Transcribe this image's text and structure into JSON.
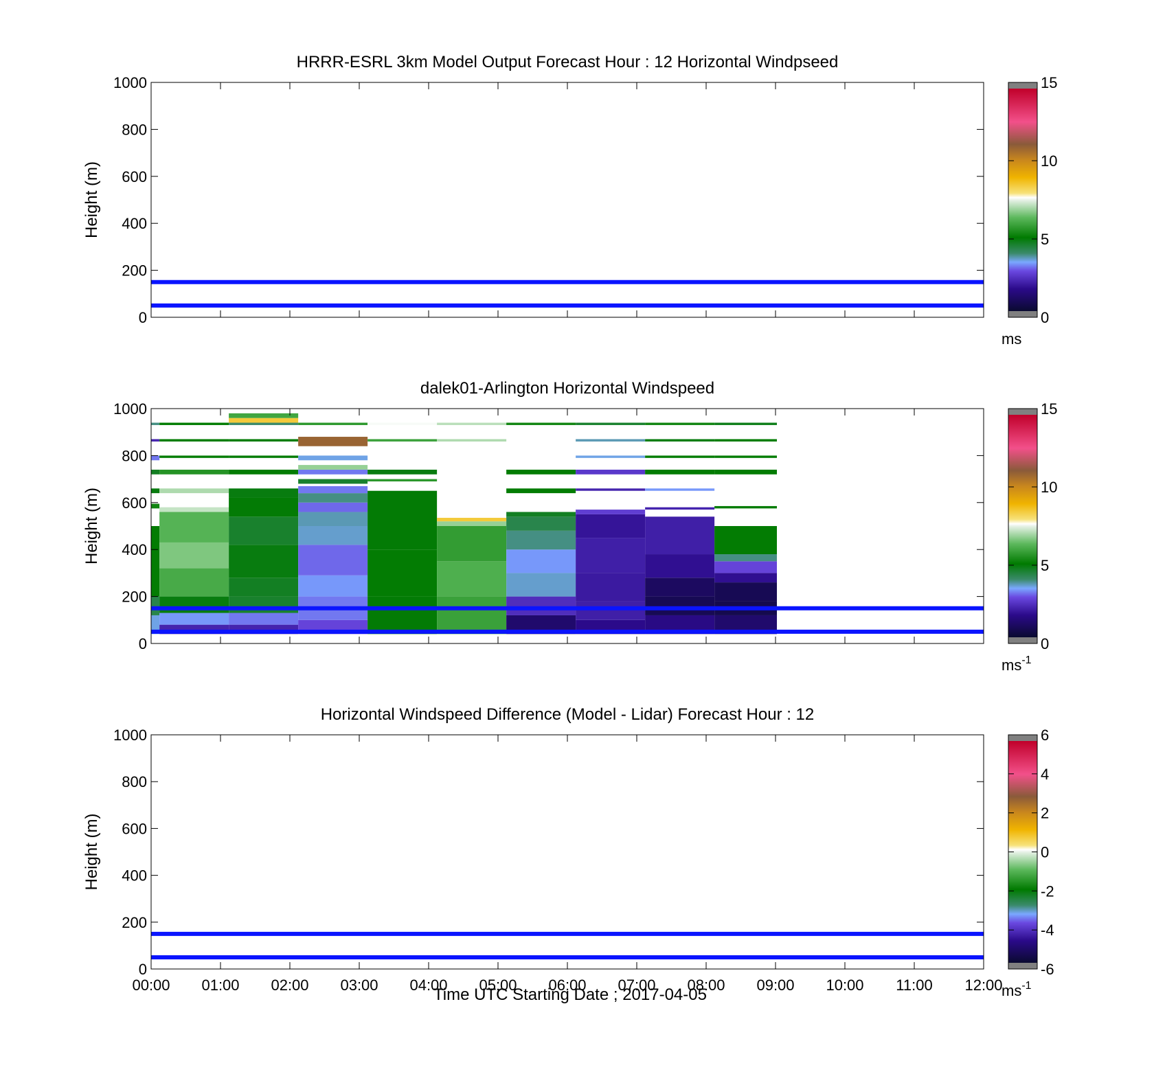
{
  "colors": {
    "guide_line": "#0a14ff",
    "axis": "#000000",
    "background": "#ffffff"
  },
  "xaxis": {
    "label": "Time UTC  Starting Date ; 2017-04-05",
    "ticks": [
      "00:00",
      "01:00",
      "02:00",
      "03:00",
      "04:00",
      "05:00",
      "06:00",
      "07:00",
      "08:00",
      "09:00",
      "10:00",
      "11:00",
      "12:00"
    ],
    "range_hours": [
      0,
      12
    ]
  },
  "chart_data": [
    {
      "type": "heatmap",
      "title": "HRRR-ESRL 3km Model Output   Forecast Hour : 12 Horizontal Windpseed",
      "ylabel": "Height (m)",
      "ylim": [
        0,
        1000
      ],
      "yticks": [
        "0",
        "200",
        "400",
        "600",
        "800",
        "1000"
      ],
      "colorbar": {
        "min": 0,
        "max": 15,
        "ticks": [
          "0",
          "5",
          "10",
          "15"
        ],
        "unit": "ms",
        "unit_sup": "",
        "palette": "speed"
      },
      "guide_lines_m": [
        50,
        150
      ],
      "columns": []
    },
    {
      "type": "heatmap",
      "title": "dalek01-Arlington  Horizontal Windspeed",
      "ylabel": "Height (m)",
      "ylim": [
        0,
        1000
      ],
      "yticks": [
        "0",
        "200",
        "400",
        "600",
        "800",
        "1000"
      ],
      "colorbar": {
        "min": 0,
        "max": 15,
        "ticks": [
          "0",
          "5",
          "10",
          "15"
        ],
        "unit": "ms",
        "unit_sup": "-1",
        "palette": "speed"
      },
      "guide_lines_m": [
        50,
        150
      ],
      "columns": [
        {
          "t0": 0.0,
          "t1": 0.12,
          "layers": [
            [
              40,
              120,
              3.4
            ],
            [
              120,
              200,
              4.2
            ],
            [
              200,
              500,
              5.0
            ],
            [
              575,
              595,
              5.2
            ],
            [
              640,
              660,
              4.8
            ],
            [
              720,
              740,
              4.6
            ],
            [
              780,
              800,
              3.0
            ],
            [
              860,
              870,
              2.0
            ],
            [
              930,
              940,
              3.8
            ]
          ]
        },
        {
          "t0": 0.12,
          "t1": 1.12,
          "layers": [
            [
              40,
              80,
              2.0
            ],
            [
              80,
              130,
              3.2
            ],
            [
              130,
              200,
              4.8
            ],
            [
              200,
              320,
              6.0
            ],
            [
              320,
              430,
              6.6
            ],
            [
              430,
              560,
              6.2
            ],
            [
              560,
              580,
              7.2
            ],
            [
              640,
              660,
              7.0
            ],
            [
              720,
              740,
              5.5
            ],
            [
              790,
              800,
              5.0
            ],
            [
              860,
              870,
              5.0
            ],
            [
              930,
              940,
              5.0
            ]
          ]
        },
        {
          "t0": 1.12,
          "t1": 2.12,
          "layers": [
            [
              40,
              80,
              2.0
            ],
            [
              80,
              130,
              3.0
            ],
            [
              130,
              200,
              4.5
            ],
            [
              200,
              280,
              4.6
            ],
            [
              280,
              420,
              4.8
            ],
            [
              420,
              540,
              4.5
            ],
            [
              540,
              620,
              4.9
            ],
            [
              620,
              660,
              4.8
            ],
            [
              720,
              740,
              5.0
            ],
            [
              790,
              800,
              4.9
            ],
            [
              860,
              870,
              4.9
            ],
            [
              930,
              940,
              3.9
            ],
            [
              940,
              960,
              8.5
            ],
            [
              960,
              980,
              5.9
            ]
          ]
        },
        {
          "t0": 2.12,
          "t1": 3.12,
          "layers": [
            [
              40,
              100,
              2.6
            ],
            [
              100,
              200,
              3.0
            ],
            [
              200,
              290,
              3.2
            ],
            [
              290,
              420,
              2.9
            ],
            [
              420,
              500,
              3.5
            ],
            [
              500,
              560,
              3.6
            ],
            [
              560,
              600,
              2.9
            ],
            [
              600,
              640,
              3.8
            ],
            [
              640,
              670,
              3.0
            ],
            [
              680,
              700,
              4.5
            ],
            [
              720,
              740,
              3.0
            ],
            [
              740,
              760,
              6.8
            ],
            [
              780,
              800,
              3.4
            ],
            [
              840,
              880,
              11.0
            ],
            [
              930,
              940,
              5.6
            ]
          ]
        },
        {
          "t0": 3.12,
          "t1": 4.12,
          "layers": [
            [
              40,
              200,
              4.9
            ],
            [
              200,
              400,
              5.0
            ],
            [
              400,
              650,
              4.9
            ],
            [
              690,
              700,
              5.6
            ],
            [
              720,
              740,
              4.8
            ],
            [
              860,
              870,
              5.8
            ],
            [
              930,
              940,
              7.6
            ]
          ]
        },
        {
          "t0": 4.12,
          "t1": 5.12,
          "layers": [
            [
              40,
              200,
              5.8
            ],
            [
              200,
              350,
              6.1
            ],
            [
              350,
              500,
              5.7
            ],
            [
              500,
              520,
              6.8
            ],
            [
              520,
              535,
              8.5
            ],
            [
              860,
              870,
              7.0
            ],
            [
              930,
              940,
              7.1
            ]
          ]
        },
        {
          "t0": 5.12,
          "t1": 6.12,
          "layers": [
            [
              40,
              120,
              1.0
            ],
            [
              120,
              200,
              2.2
            ],
            [
              200,
              300,
              3.5
            ],
            [
              300,
              400,
              3.2
            ],
            [
              400,
              480,
              3.8
            ],
            [
              480,
              540,
              4.2
            ],
            [
              540,
              560,
              4.6
            ],
            [
              640,
              660,
              5.0
            ],
            [
              720,
              740,
              5.0
            ],
            [
              930,
              940,
              5.2
            ]
          ]
        },
        {
          "t0": 6.12,
          "t1": 7.12,
          "layers": [
            [
              40,
              100,
              1.5
            ],
            [
              100,
              180,
              1.9
            ],
            [
              180,
              300,
              1.8
            ],
            [
              300,
              450,
              1.9
            ],
            [
              450,
              550,
              1.7
            ],
            [
              550,
              570,
              2.5
            ],
            [
              650,
              660,
              2.0
            ],
            [
              720,
              740,
              2.4
            ],
            [
              790,
              800,
              3.4
            ],
            [
              860,
              870,
              3.6
            ],
            [
              930,
              940,
              4.5
            ]
          ]
        },
        {
          "t0": 7.12,
          "t1": 8.12,
          "layers": [
            [
              40,
              120,
              1.4
            ],
            [
              120,
              200,
              0.6
            ],
            [
              200,
              280,
              0.8
            ],
            [
              280,
              380,
              1.6
            ],
            [
              380,
              540,
              1.9
            ],
            [
              570,
              580,
              2.0
            ],
            [
              650,
              660,
              3.2
            ],
            [
              720,
              740,
              5.0
            ],
            [
              790,
              800,
              5.0
            ],
            [
              860,
              870,
              4.8
            ],
            [
              930,
              940,
              5.2
            ]
          ]
        },
        {
          "t0": 8.12,
          "t1": 9.02,
          "layers": [
            [
              40,
              120,
              1.0
            ],
            [
              120,
              180,
              0.5
            ],
            [
              180,
              260,
              0.6
            ],
            [
              260,
              300,
              1.6
            ],
            [
              300,
              350,
              2.6
            ],
            [
              350,
              380,
              3.8
            ],
            [
              380,
              500,
              5.0
            ],
            [
              575,
              585,
              5.0
            ],
            [
              720,
              740,
              5.0
            ],
            [
              790,
              800,
              5.0
            ],
            [
              860,
              870,
              5.0
            ],
            [
              930,
              940,
              4.7
            ]
          ]
        }
      ]
    },
    {
      "type": "heatmap",
      "title": "Horizontal Windspeed Difference (Model - Lidar) Forecast Hour : 12",
      "ylabel": "Height (m)",
      "ylim": [
        0,
        1000
      ],
      "yticks": [
        "0",
        "200",
        "400",
        "600",
        "800",
        "1000"
      ],
      "colorbar": {
        "min": -6,
        "max": 6,
        "ticks": [
          "-6",
          "-4",
          "-2",
          "0",
          "2",
          "4",
          "6"
        ],
        "unit": "ms",
        "unit_sup": "-1",
        "palette": "diff"
      },
      "guide_lines_m": [
        50,
        150
      ],
      "columns": []
    }
  ]
}
